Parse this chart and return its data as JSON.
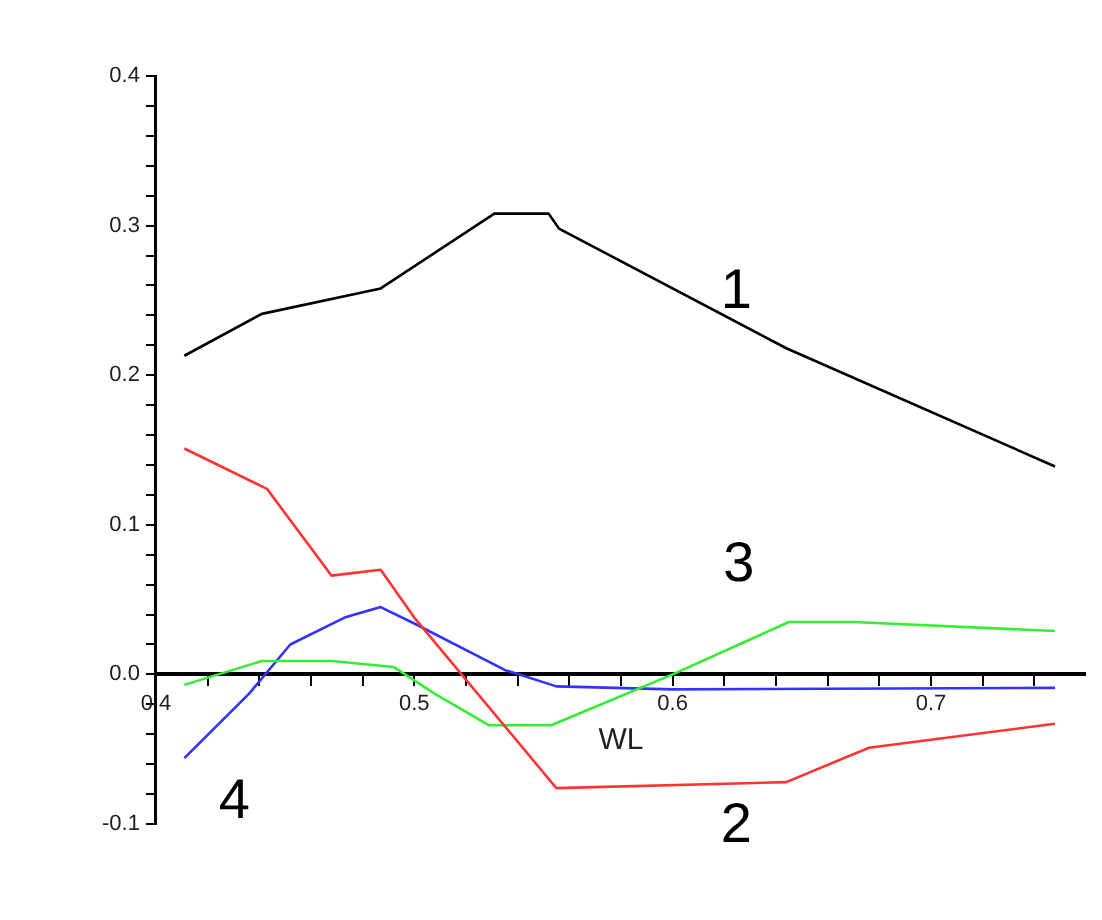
{
  "chart_data": {
    "type": "line",
    "xlabel": "WL",
    "xlim": [
      0.4,
      0.76
    ],
    "xticks": [
      0.4,
      {
        "value": 0.42,
        "label": null
      },
      {
        "value": 0.44,
        "label": null
      },
      {
        "value": 0.46,
        "label": null
      },
      {
        "value": 0.48,
        "label": null
      },
      0.5,
      {
        "value": 0.52,
        "label": null
      },
      {
        "value": 0.54,
        "label": null
      },
      {
        "value": 0.56,
        "label": null
      },
      {
        "value": 0.58,
        "label": null
      },
      0.6,
      {
        "value": 0.62,
        "label": null
      },
      {
        "value": 0.64,
        "label": null
      },
      {
        "value": 0.66,
        "label": null
      },
      {
        "value": 0.68,
        "label": null
      },
      0.7,
      {
        "value": 0.72,
        "label": null
      },
      {
        "value": 0.74,
        "label": null
      }
    ],
    "ylim": [
      -0.1,
      0.4
    ],
    "yticks": [
      -0.1,
      {
        "value": -0.08,
        "label": null
      },
      {
        "value": -0.06,
        "label": null
      },
      {
        "value": -0.04,
        "label": null
      },
      {
        "value": -0.02,
        "label": null
      },
      {
        "value": 0,
        "label": "0.0"
      },
      {
        "value": 0.02,
        "label": null
      },
      {
        "value": 0.04,
        "label": null
      },
      {
        "value": 0.06,
        "label": null
      },
      {
        "value": 0.08,
        "label": null
      },
      0.1,
      {
        "value": 0.12,
        "label": null
      },
      {
        "value": 0.14,
        "label": null
      },
      {
        "value": 0.16,
        "label": null
      },
      {
        "value": 0.18,
        "label": null
      },
      0.2,
      {
        "value": 0.22,
        "label": null
      },
      {
        "value": 0.24,
        "label": null
      },
      {
        "value": 0.26,
        "label": null
      },
      {
        "value": 0.28,
        "label": null
      },
      0.3,
      {
        "value": 0.32,
        "label": null
      },
      {
        "value": 0.34,
        "label": null
      },
      {
        "value": 0.36,
        "label": null
      },
      {
        "value": 0.38,
        "label": null
      },
      0.4
    ],
    "grid": false,
    "legend": false,
    "marker": "none",
    "line_style": "solid",
    "series": [
      {
        "name": "1",
        "color": "#000000",
        "x": [
          0.411,
          0.441,
          0.487,
          0.531,
          0.552,
          0.556,
          0.644,
          0.748
        ],
        "values": [
          0.213,
          0.241,
          0.258,
          0.308,
          0.308,
          0.298,
          0.218,
          0.139
        ]
      },
      {
        "name": "2",
        "color": "#ff3333",
        "x": [
          0.411,
          0.443,
          0.468,
          0.487,
          0.5,
          0.555,
          0.644,
          0.676,
          0.748
        ],
        "values": [
          0.151,
          0.124,
          0.066,
          0.07,
          0.038,
          -0.076,
          -0.072,
          -0.049,
          -0.033
        ]
      },
      {
        "name": "3",
        "color": "#33ee33",
        "x": [
          0.411,
          0.441,
          0.468,
          0.492,
          0.508,
          0.529,
          0.553,
          0.6,
          0.645,
          0.67,
          0.748
        ],
        "values": [
          -0.007,
          0.009,
          0.009,
          0.005,
          -0.013,
          -0.034,
          -0.034,
          0,
          0.035,
          0.035,
          0.029
        ]
      },
      {
        "name": "4",
        "color": "#3333ff",
        "x": [
          0.411,
          0.436,
          0.452,
          0.473,
          0.487,
          0.5,
          0.535,
          0.555,
          0.6,
          0.748
        ],
        "values": [
          -0.056,
          -0.013,
          0.02,
          0.038,
          0.045,
          0.034,
          0.003,
          -0.008,
          -0.01,
          -0.009
        ]
      }
    ]
  }
}
